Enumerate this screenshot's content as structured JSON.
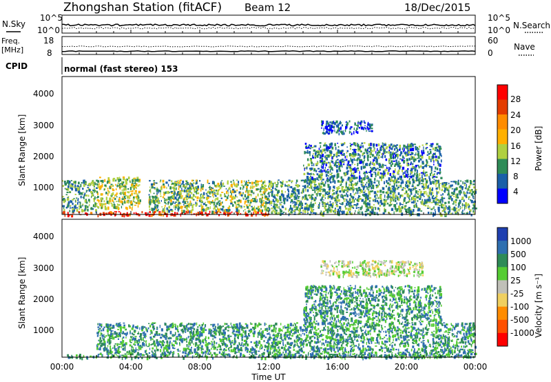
{
  "header": {
    "station": "Zhongshan Station (fitACF)",
    "beam": "Beam 12",
    "date": "18/Dec/2015"
  },
  "top_panels": {
    "nsky_label": "N.Sky",
    "nsearch_label": "N.Search",
    "noise_ticks_left": [
      "10^5",
      "10^0"
    ],
    "noise_ticks_right": [
      "10^5",
      "10^0"
    ],
    "freq_label_1": "Freq.",
    "freq_label_2": "[MHz]",
    "freq_ticks": [
      "18",
      "8"
    ],
    "nave_label": "Nave",
    "nave_ticks": [
      "60",
      "0"
    ],
    "cpid_label": "CPID",
    "cpid_text": "normal (fast stereo) 153"
  },
  "power_panel": {
    "ylabel": "Slant Range [km]",
    "yticks": [
      "4000",
      "3000",
      "2000",
      "1000"
    ],
    "colorbar_label": "Power [dB]",
    "colorbar_ticks": [
      "28",
      "24",
      "20",
      "16",
      "12",
      "8",
      "4"
    ],
    "colors": [
      "#ff0000",
      "#e33c00",
      "#ff8c00",
      "#ffb000",
      "#b0d040",
      "#2e8b57",
      "#1a5fa8",
      "#0000ff"
    ]
  },
  "velocity_panel": {
    "ylabel": "Slant Range [km]",
    "yticks": [
      "4000",
      "3000",
      "2000",
      "1000"
    ],
    "colorbar_label": "Velocity [m s⁻¹]",
    "colorbar_ticks": [
      "1000",
      "500",
      "100",
      "25",
      "-25",
      "-100",
      "-500",
      "-1000"
    ],
    "colors": [
      "#1f3fb0",
      "#2e6fb0",
      "#2e8b57",
      "#55cc33",
      "#c0c0b8",
      "#f0d060",
      "#ff8c00",
      "#ff5000",
      "#ff0000"
    ]
  },
  "x_axis": {
    "ticks": [
      "00:00",
      "04:00",
      "08:00",
      "12:00",
      "16:00",
      "20:00",
      "00:00"
    ],
    "label": "Time UT"
  },
  "chart_data": [
    {
      "type": "heatmap",
      "title": "Power",
      "xlabel": "Time UT",
      "ylabel": "Slant Range [km]",
      "xlim": [
        0,
        24
      ],
      "ylim": [
        180,
        4600
      ],
      "colorbar": "Power [dB]",
      "clim": [
        0,
        32
      ],
      "regions": [
        {
          "t": [
            0,
            12
          ],
          "r": [
            180,
            300
          ],
          "level": 30
        },
        {
          "t": [
            0,
            2
          ],
          "r": [
            300,
            1300
          ],
          "level": 12
        },
        {
          "t": [
            2,
            4.5
          ],
          "r": [
            400,
            1400
          ],
          "level": 16
        },
        {
          "t": [
            5,
            12
          ],
          "r": [
            300,
            1300
          ],
          "level": 14
        },
        {
          "t": [
            12,
            24
          ],
          "r": [
            200,
            1300
          ],
          "level": 12
        },
        {
          "t": [
            14,
            22
          ],
          "r": [
            1300,
            2500
          ],
          "level": 10
        },
        {
          "t": [
            15,
            18
          ],
          "r": [
            2800,
            3200
          ],
          "level": 8
        }
      ]
    },
    {
      "type": "heatmap",
      "title": "Velocity",
      "xlabel": "Time UT",
      "ylabel": "Slant Range [km]",
      "xlim": [
        0,
        24
      ],
      "ylim": [
        180,
        4600
      ],
      "colorbar": "Velocity [m s⁻¹]",
      "clim": [
        -1000,
        1000
      ],
      "regions": [
        {
          "t": [
            0,
            24
          ],
          "r": [
            180,
            300
          ],
          "level": 100
        },
        {
          "t": [
            2,
            12
          ],
          "r": [
            300,
            1300
          ],
          "level": 200
        },
        {
          "t": [
            12,
            24
          ],
          "r": [
            200,
            1300
          ],
          "level": 150
        },
        {
          "t": [
            14,
            22
          ],
          "r": [
            1300,
            2500
          ],
          "level": 80
        },
        {
          "t": [
            15,
            21
          ],
          "r": [
            2800,
            3300
          ],
          "level": 0
        }
      ]
    }
  ]
}
